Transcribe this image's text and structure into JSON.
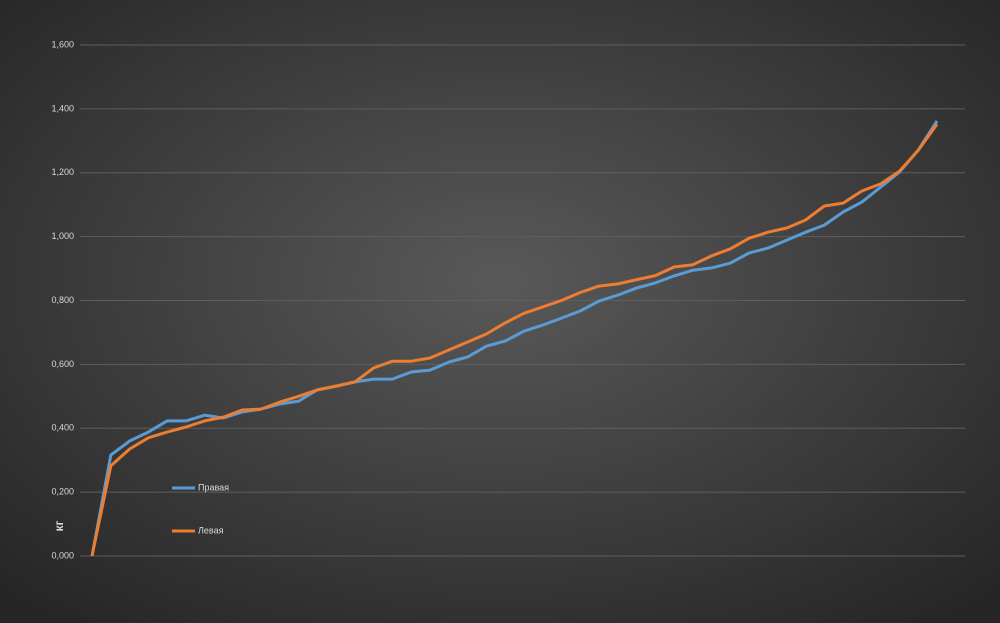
{
  "chart_data": {
    "type": "line",
    "y_label": "кг",
    "categories": [
      null,
      null,
      null,
      null,
      null,
      null,
      null,
      null,
      null,
      null,
      null,
      null,
      null,
      null,
      null,
      null,
      null,
      null,
      null,
      null,
      null,
      null,
      null,
      null,
      null,
      null,
      null,
      null,
      null,
      null,
      null,
      null,
      null,
      null,
      null,
      null,
      null,
      null,
      null,
      null,
      null,
      null,
      null,
      null,
      null,
      null
    ],
    "series": [
      {
        "name": "Правая",
        "color": "#5b9bd5",
        "values": [
          0,
          0.316,
          0.36,
          0.388,
          0.423,
          0.423,
          0.441,
          0.432,
          0.451,
          0.46,
          0.476,
          0.485,
          0.52,
          0.532,
          0.545,
          0.554,
          0.554,
          0.576,
          0.582,
          0.607,
          0.623,
          0.657,
          0.673,
          0.704,
          0.723,
          0.745,
          0.767,
          0.798,
          0.817,
          0.839,
          0.855,
          0.877,
          0.895,
          0.902,
          0.917,
          0.949,
          0.964,
          0.989,
          1.014,
          1.036,
          1.077,
          1.108,
          1.155,
          1.202,
          1.271,
          1.362
        ]
      },
      {
        "name": "Левая",
        "color": "#ed7d31",
        "values": [
          0,
          0.282,
          0.335,
          0.37,
          0.388,
          0.404,
          0.423,
          0.435,
          0.457,
          0.46,
          0.482,
          0.5,
          0.52,
          0.532,
          0.545,
          0.589,
          0.61,
          0.61,
          0.62,
          0.645,
          0.67,
          0.695,
          0.73,
          0.76,
          0.78,
          0.8,
          0.825,
          0.845,
          0.852,
          0.865,
          0.878,
          0.905,
          0.912,
          0.94,
          0.962,
          0.995,
          1.014,
          1.027,
          1.052,
          1.096,
          1.105,
          1.143,
          1.165,
          1.205,
          1.27,
          1.352
        ]
      }
    ],
    "ylim": [
      0,
      1.6
    ],
    "yticks": [
      {
        "value": 0,
        "label": "0,000"
      },
      {
        "value": 0.2,
        "label": "0,200"
      },
      {
        "value": 0.4,
        "label": "0,400"
      },
      {
        "value": 0.6,
        "label": "0,600"
      },
      {
        "value": 0.8,
        "label": "0,800"
      },
      {
        "value": 1,
        "label": "1,000"
      },
      {
        "value": 1.2,
        "label": "1,200"
      },
      {
        "value": 1.4,
        "label": "1,400"
      },
      {
        "value": 1.6,
        "label": "1,600"
      }
    ],
    "grid": true
  }
}
